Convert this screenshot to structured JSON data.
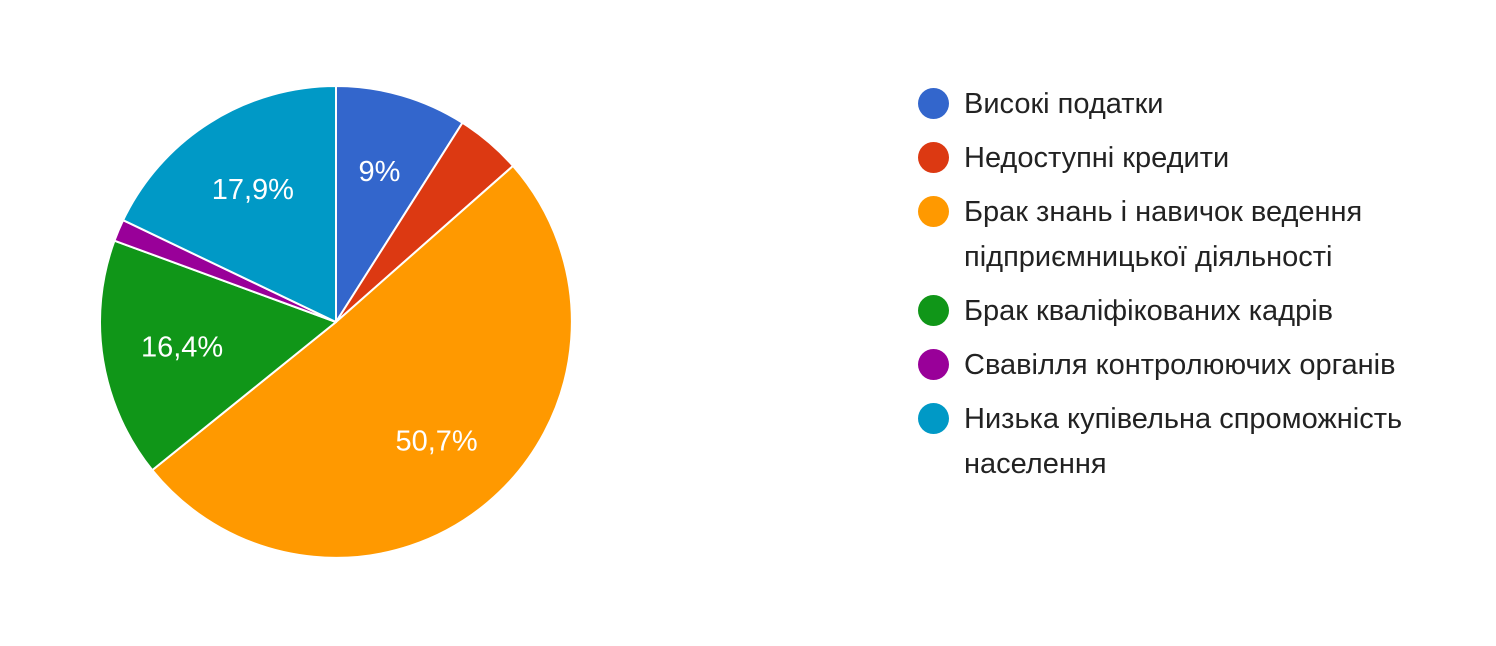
{
  "chart_data": {
    "type": "pie",
    "title": "",
    "legend_position": "right",
    "start_angle_deg": 90,
    "direction": "clockwise",
    "slices": [
      {
        "name": "Високі податки",
        "value": 9.0,
        "label": "9%",
        "color": "#3366cc"
      },
      {
        "name": "Недоступні кредити",
        "value": 4.5,
        "label": "",
        "color": "#dc3912"
      },
      {
        "name": "Брак знань і навичок ведення підприємницької діяльності",
        "value": 50.7,
        "label": "50,7%",
        "color": "#ff9900"
      },
      {
        "name": "Брак кваліфікованих кадрів",
        "value": 16.4,
        "label": "16,4%",
        "color": "#109618"
      },
      {
        "name": "Свавілля контролюючих органів",
        "value": 1.5,
        "label": "",
        "color": "#990099"
      },
      {
        "name": "Низька купівельна спроможність населення",
        "value": 17.9,
        "label": "17,9%",
        "color": "#0099c6"
      }
    ]
  }
}
